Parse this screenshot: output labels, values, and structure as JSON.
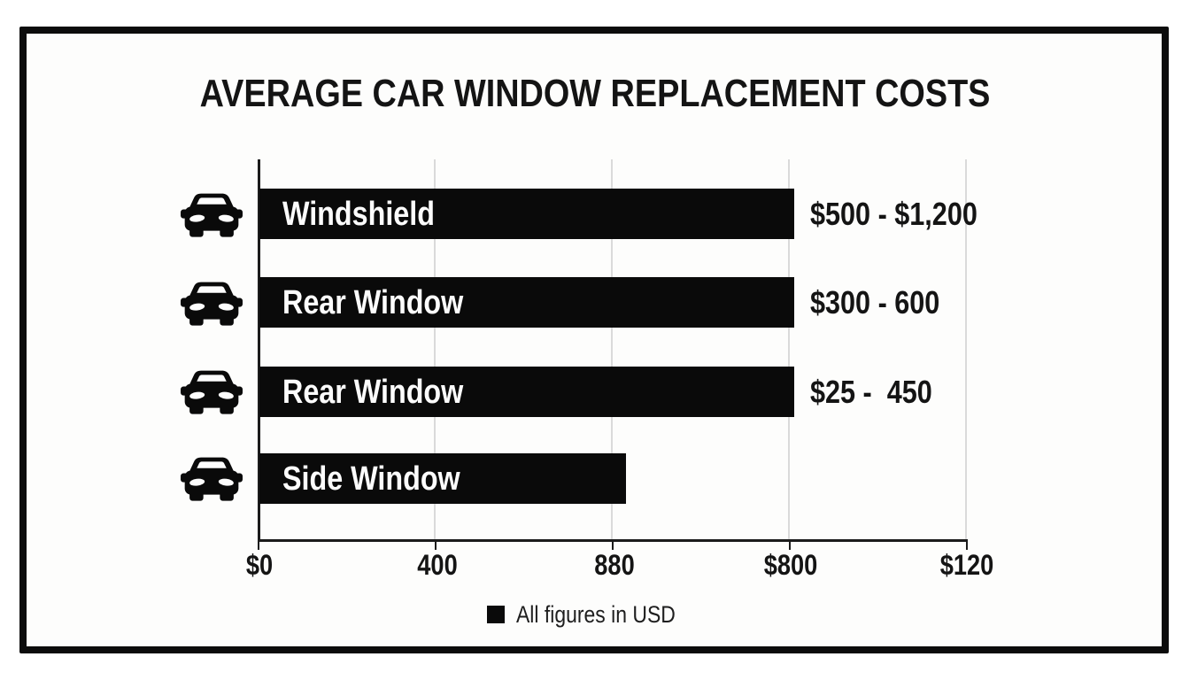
{
  "title": "AVERAGE CAR WINDOW REPLACEMENT COSTS",
  "colors": {
    "bar": "#0a0a0a",
    "frame": "#0c0c0c",
    "grid": "#dadada",
    "text": "#141414",
    "background": "#fdfdfc",
    "bar_text": "#fcfcfc"
  },
  "chart_data": {
    "type": "bar",
    "orientation": "horizontal",
    "title": "AVERAGE CAR WINDOW REPLACEMENT COSTS",
    "grid": true,
    "legend_position": "bottom-center",
    "rows": [
      {
        "icon": "car-icon",
        "label": "Windshield",
        "value_label": "$500 - $1,200",
        "value_range": [
          500,
          1200
        ],
        "bar_length_pct": 75.5
      },
      {
        "icon": "car-icon",
        "label": "Rear Window",
        "value_label": "$300 - 600",
        "value_range": [
          300,
          600
        ],
        "bar_length_pct": 75.5
      },
      {
        "icon": "car-icon",
        "label": "Rear Window",
        "value_label": "$25 -  450",
        "value_range": [
          25,
          450
        ],
        "bar_length_pct": 75.5
      },
      {
        "icon": "car-icon",
        "label": "Side Window",
        "value_label": "",
        "value_range": null,
        "bar_length_pct": 51.8
      }
    ],
    "x_axis": {
      "tick_labels": [
        "$0",
        "400",
        "880",
        "$800",
        "$120"
      ]
    },
    "legend": {
      "swatch": "black-square-icon",
      "label": "All figures in USD"
    }
  }
}
